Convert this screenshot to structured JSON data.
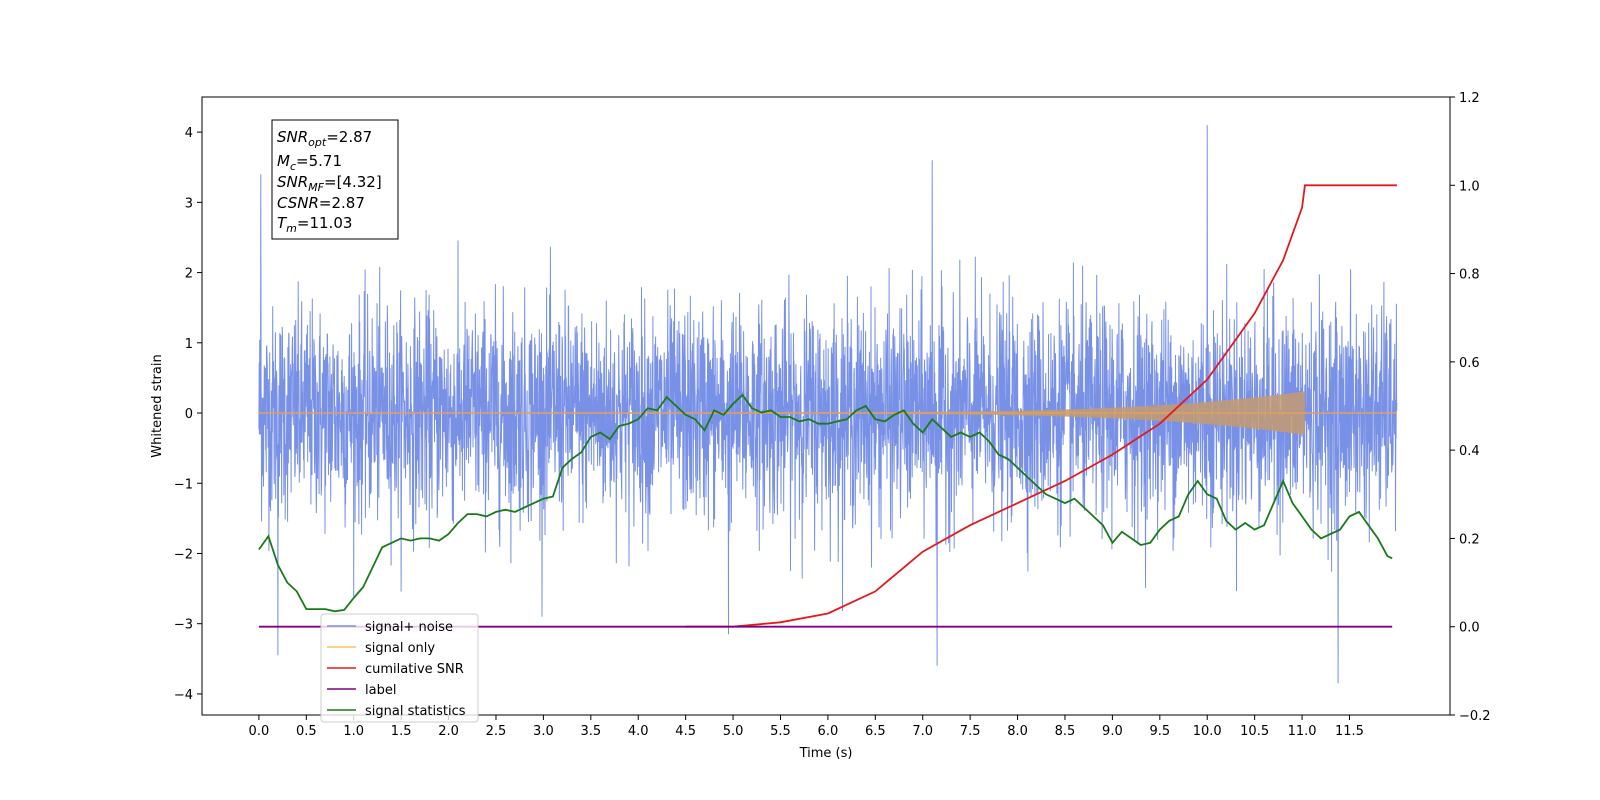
{
  "chart_data": {
    "type": "line",
    "xlabel": "Time (s)",
    "ylabel_left": "Whitened strain",
    "xlim": [
      -0.6,
      12.56
    ],
    "ylim_left": [
      -4.3,
      4.5
    ],
    "ylim_right": [
      -0.2,
      1.2
    ],
    "x_ticks": [
      "0.0",
      "0.5",
      "1.0",
      "1.5",
      "2.0",
      "2.5",
      "3.0",
      "3.5",
      "4.0",
      "4.5",
      "5.0",
      "5.5",
      "6.0",
      "6.5",
      "7.0",
      "7.5",
      "8.0",
      "8.5",
      "9.0",
      "9.5",
      "10.0",
      "10.5",
      "11.0",
      "11.5"
    ],
    "y_ticks_left": [
      "−4",
      "−3",
      "−2",
      "−1",
      "0",
      "1",
      "2",
      "3",
      "4"
    ],
    "y_ticks_right": [
      "−0.2",
      "0.0",
      "0.2",
      "0.4",
      "0.6",
      "0.8",
      "1.0",
      "1.2"
    ],
    "grid": false,
    "legend_position": "lower-left",
    "info_box": {
      "snr_opt": {
        "main": "SNR",
        "sub": "opt",
        "value": "=2.87"
      },
      "mc": {
        "main": "M",
        "sub": "c",
        "value": "=5.71"
      },
      "snr_mf": {
        "main": "SNR",
        "sub": "MF",
        "value": "=[4.32]"
      },
      "csnr": {
        "main": "CSNR",
        "value": "=2.87"
      },
      "tm": {
        "main": "T",
        "sub": "m",
        "value": "=11.03"
      }
    },
    "series": [
      {
        "name": "signal+ noise",
        "color": "#7891e6",
        "axis": "left",
        "noise_std": 0.75,
        "x_range": [
          0.0,
          12.0
        ],
        "peak_examples": [
          [
            0.02,
            3.4
          ],
          [
            0.2,
            -3.45
          ],
          [
            7.1,
            3.6
          ],
          [
            7.15,
            -3.6
          ],
          [
            10.0,
            4.1
          ],
          [
            11.38,
            -3.85
          ],
          [
            4.95,
            -3.15
          ]
        ]
      },
      {
        "name": "signal only",
        "color": "#ffc060",
        "axis": "left",
        "chirp_end": 11.03,
        "peak_amplitude": 0.3
      },
      {
        "name": "cumilative SNR",
        "color": "#e31a1c",
        "axis": "right",
        "x": [
          4.5,
          5.0,
          5.5,
          6.0,
          6.5,
          7.0,
          7.5,
          8.0,
          8.5,
          9.0,
          9.5,
          10.0,
          10.5,
          10.8,
          11.0,
          11.03,
          11.5,
          12.0
        ],
        "y": [
          0.0,
          0.0,
          0.01,
          0.03,
          0.08,
          0.17,
          0.23,
          0.28,
          0.33,
          0.39,
          0.46,
          0.56,
          0.71,
          0.83,
          0.95,
          1.0,
          1.0,
          1.0
        ]
      },
      {
        "name": "label",
        "color": "#7f007f",
        "axis": "right",
        "x": [
          0.0,
          11.95
        ],
        "y": [
          0.0,
          0.0
        ]
      },
      {
        "name": "signal statistics",
        "color": "#1a7a1a",
        "axis": "right",
        "x": [
          0.0,
          0.1,
          0.2,
          0.3,
          0.4,
          0.5,
          0.6,
          0.7,
          0.8,
          0.9,
          1.0,
          1.1,
          1.2,
          1.3,
          1.4,
          1.5,
          1.6,
          1.7,
          1.8,
          1.9,
          2.0,
          2.1,
          2.2,
          2.3,
          2.4,
          2.5,
          2.6,
          2.7,
          2.8,
          2.9,
          3.0,
          3.1,
          3.2,
          3.3,
          3.4,
          3.5,
          3.6,
          3.7,
          3.8,
          3.9,
          4.0,
          4.1,
          4.2,
          4.3,
          4.4,
          4.5,
          4.6,
          4.7,
          4.8,
          4.9,
          5.0,
          5.1,
          5.2,
          5.3,
          5.4,
          5.5,
          5.6,
          5.7,
          5.8,
          5.9,
          6.0,
          6.1,
          6.2,
          6.3,
          6.4,
          6.5,
          6.6,
          6.7,
          6.8,
          6.9,
          7.0,
          7.1,
          7.2,
          7.3,
          7.4,
          7.5,
          7.6,
          7.7,
          7.8,
          7.9,
          8.0,
          8.1,
          8.2,
          8.3,
          8.4,
          8.5,
          8.6,
          8.7,
          8.8,
          8.9,
          9.0,
          9.1,
          9.2,
          9.3,
          9.4,
          9.5,
          9.6,
          9.7,
          9.8,
          9.9,
          10.0,
          10.1,
          10.2,
          10.3,
          10.4,
          10.5,
          10.6,
          10.7,
          10.8,
          10.9,
          11.0,
          11.1,
          11.2,
          11.3,
          11.4,
          11.5,
          11.6,
          11.7,
          11.8,
          11.9,
          11.95
        ],
        "y": [
          0.175,
          0.205,
          0.14,
          0.1,
          0.08,
          0.04,
          0.04,
          0.04,
          0.035,
          0.038,
          0.065,
          0.09,
          0.135,
          0.18,
          0.19,
          0.2,
          0.195,
          0.2,
          0.2,
          0.195,
          0.21,
          0.235,
          0.255,
          0.255,
          0.25,
          0.26,
          0.265,
          0.26,
          0.27,
          0.28,
          0.29,
          0.295,
          0.36,
          0.38,
          0.395,
          0.43,
          0.44,
          0.425,
          0.455,
          0.46,
          0.47,
          0.495,
          0.49,
          0.52,
          0.5,
          0.48,
          0.47,
          0.445,
          0.49,
          0.48,
          0.505,
          0.525,
          0.495,
          0.485,
          0.49,
          0.475,
          0.475,
          0.465,
          0.47,
          0.46,
          0.46,
          0.465,
          0.47,
          0.49,
          0.5,
          0.47,
          0.465,
          0.48,
          0.49,
          0.46,
          0.44,
          0.47,
          0.45,
          0.43,
          0.44,
          0.43,
          0.44,
          0.42,
          0.39,
          0.38,
          0.36,
          0.34,
          0.32,
          0.3,
          0.29,
          0.28,
          0.29,
          0.27,
          0.25,
          0.23,
          0.19,
          0.215,
          0.2,
          0.185,
          0.19,
          0.22,
          0.24,
          0.25,
          0.3,
          0.33,
          0.3,
          0.29,
          0.24,
          0.22,
          0.235,
          0.22,
          0.23,
          0.28,
          0.33,
          0.28,
          0.25,
          0.22,
          0.2,
          0.21,
          0.22,
          0.25,
          0.26,
          0.23,
          0.2,
          0.16,
          0.155
        ]
      }
    ]
  }
}
